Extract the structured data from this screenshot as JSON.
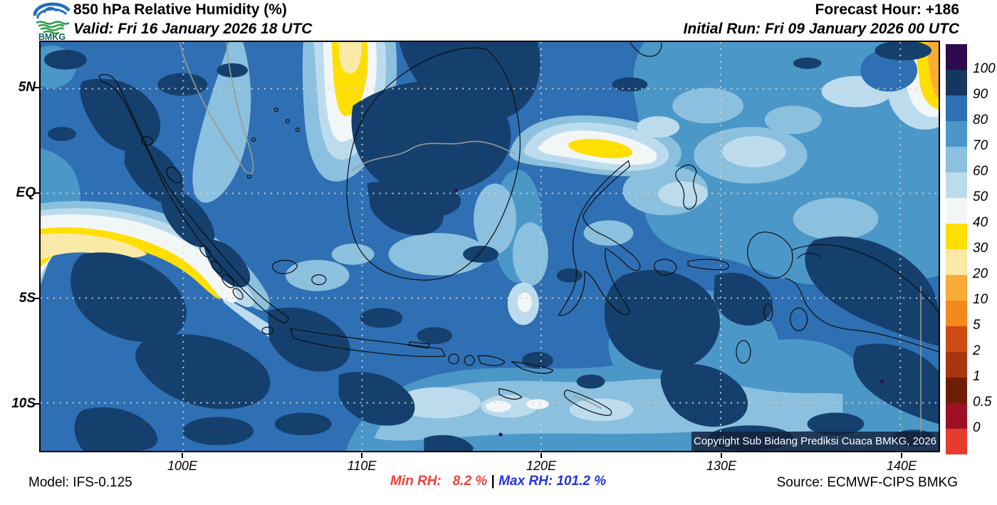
{
  "header": {
    "logo_text": "BMKG",
    "title": "850 hPa Relative Humidity (%)",
    "valid": "Valid: Fri 16 January 2026 18 UTC",
    "forecast_hour": "Forecast Hour: +186",
    "initial_run": "Initial Run: Fri 09 January 2026 00 UTC"
  },
  "map": {
    "lat_ticks": [
      "5N",
      "EQ",
      "5S",
      "10S"
    ],
    "lon_ticks": [
      "100E",
      "110E",
      "120E",
      "130E",
      "140E"
    ],
    "copyright": "Copyright Sub Bidang Prediksi Cuaca BMKG, 2026"
  },
  "colorbar": {
    "unit": "%",
    "segments": [
      {
        "color": "#2e0b4e",
        "label": "100"
      },
      {
        "color": "#143760",
        "label": "90"
      },
      {
        "color": "#2f6fb3",
        "label": "80"
      },
      {
        "color": "#4b97c8",
        "label": "70"
      },
      {
        "color": "#8bc0de",
        "label": "60"
      },
      {
        "color": "#bcdcee",
        "label": "50"
      },
      {
        "color": "#f2f6f7",
        "label": "40"
      },
      {
        "color": "#fedf00",
        "label": "30"
      },
      {
        "color": "#fbe9a7",
        "label": "20"
      },
      {
        "color": "#f8ac38",
        "label": "10"
      },
      {
        "color": "#f18a1a",
        "label": "5"
      },
      {
        "color": "#cc4c13",
        "label": "2"
      },
      {
        "color": "#a8370f",
        "label": "1"
      },
      {
        "color": "#6e1e07",
        "label": "0.5"
      },
      {
        "color": "#9e1023",
        "label": "0"
      },
      {
        "color": "#e53c2e",
        "label": null
      }
    ]
  },
  "footer": {
    "model": "Model: IFS-0.125",
    "min_rh": "Min RH:   8.2 % ",
    "separator": "| ",
    "max_rh": "Max RH: 101.2 %",
    "min_color": "#f2423a",
    "max_color": "#2634dd",
    "source": "Source: ECMWF-CIPS BMKG"
  }
}
